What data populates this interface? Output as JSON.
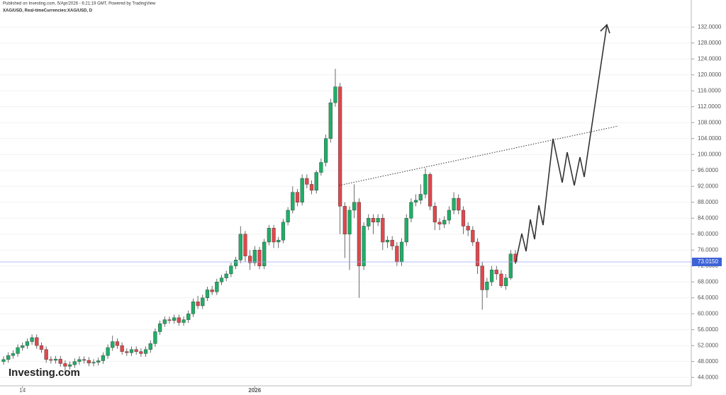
{
  "header": {
    "published": "Published on Investing.com, 5/Apr/2026 - 6:21:19 GMT, Powered by TradingView",
    "symbol": "XAG/USD, Real-timeCurrencies:XAG/USD, D"
  },
  "logo": "Investing.com",
  "chart_data": {
    "type": "candlestick",
    "categories": [
      null,
      null,
      null,
      null,
      "14",
      null,
      null,
      null,
      null,
      null,
      null,
      null,
      null,
      null,
      null,
      null,
      null,
      null,
      null,
      null,
      null,
      null,
      null,
      null,
      null,
      null,
      null,
      null,
      null,
      null,
      null,
      null,
      null,
      null,
      null,
      null,
      null,
      null,
      null,
      null,
      null,
      null,
      null,
      null,
      null,
      null,
      null,
      null,
      null,
      null,
      null,
      null,
      null,
      "2026",
      null,
      null,
      null,
      null,
      null,
      null,
      null,
      null,
      null,
      null,
      null,
      null,
      null,
      null,
      null,
      null,
      null,
      null,
      null,
      null,
      null,
      null,
      null,
      null,
      null,
      null,
      null,
      null,
      null,
      null,
      null,
      null,
      null,
      null,
      null,
      null,
      null,
      null,
      null,
      null,
      null,
      null,
      null,
      null,
      null,
      null,
      null,
      null,
      null,
      null,
      null,
      null,
      null,
      null,
      null
    ],
    "open": [
      48,
      48.5,
      49.5,
      50,
      51.5,
      52,
      53,
      54,
      52,
      51,
      48.5,
      48.3,
      48.6,
      47.5,
      46.8,
      47.2,
      48,
      48.5,
      48.3,
      47.6,
      47.8,
      48.2,
      49.5,
      51.5,
      53,
      52,
      50.5,
      50.2,
      51,
      50.5,
      50,
      51,
      52.5,
      55.5,
      57.5,
      58.5,
      58.3,
      59,
      57.8,
      58.5,
      60,
      63,
      62,
      64,
      66,
      65.5,
      68,
      69,
      70,
      72,
      73.5,
      80,
      74.5,
      72.8,
      76,
      72,
      78,
      81.5,
      78,
      78.5,
      83,
      86,
      90.5,
      88,
      94,
      92.5,
      91,
      95.5,
      98,
      104,
      113,
      117,
      87,
      80,
      86,
      88,
      72,
      82,
      84,
      83,
      84,
      78,
      78.5,
      77,
      73,
      78,
      84,
      88,
      88.5,
      90,
      95,
      87,
      83,
      82.5,
      83.5,
      86,
      89,
      86,
      82,
      81,
      78,
      72,
      66,
      68,
      71,
      70,
      67,
      69,
      75
    ],
    "high": [
      49.3,
      50.3,
      50.8,
      52.3,
      52.8,
      53.8,
      54.8,
      54.8,
      52.8,
      51.8,
      49.3,
      49.4,
      49.4,
      48.3,
      48,
      48.8,
      49.3,
      49.3,
      49.1,
      48.6,
      49,
      50.3,
      52.3,
      54.5,
      53.8,
      52.8,
      51.3,
      51.8,
      51.8,
      51.3,
      51.8,
      53.3,
      56.3,
      58.3,
      59.3,
      59.3,
      59.8,
      59.8,
      59.3,
      60.8,
      63.8,
      64.5,
      64.8,
      66.8,
      67,
      68.8,
      69.8,
      70.8,
      72.8,
      74.3,
      82,
      80.8,
      76,
      77,
      76.8,
      78.8,
      82.3,
      82.3,
      79.3,
      83.8,
      86.8,
      92,
      91.3,
      95,
      95,
      93.5,
      96,
      99,
      105,
      114,
      121.5,
      118,
      88,
      87,
      92.5,
      89,
      83,
      85,
      85,
      85,
      85,
      79.5,
      79.5,
      78,
      79,
      85,
      89,
      90,
      92.5,
      96.5,
      95.5,
      88,
      84,
      84.5,
      87,
      90.5,
      90,
      87,
      83,
      82,
      79,
      73,
      69,
      72,
      72,
      71,
      70,
      76,
      76
    ],
    "low": [
      47.2,
      47.7,
      48.7,
      49.2,
      50.7,
      51.2,
      52.2,
      51.2,
      50.2,
      47.7,
      47.5,
      47.5,
      46.7,
      45,
      46,
      46.4,
      47.2,
      47.5,
      46.8,
      46.8,
      47,
      47.4,
      48.7,
      50.7,
      51.2,
      49.7,
      49.4,
      49.4,
      49.7,
      49.2,
      49.2,
      50.2,
      51.7,
      54.7,
      56.7,
      57.5,
      57.5,
      57,
      57,
      57.7,
      59.2,
      61.2,
      61.2,
      63.2,
      64.7,
      64.7,
      67.2,
      68.2,
      69.2,
      71.2,
      72.7,
      73,
      71,
      72,
      71.2,
      71.2,
      77.2,
      76.5,
      76.5,
      77.7,
      82.2,
      85.2,
      87,
      87.2,
      91.5,
      90,
      90.2,
      94.7,
      97,
      103,
      112,
      80,
      74,
      71,
      84,
      64,
      71,
      81,
      80,
      82,
      76,
      76.5,
      76,
      72,
      72,
      77,
      83,
      87,
      87.5,
      89,
      86,
      81,
      81,
      81.5,
      82.5,
      85,
      85,
      80,
      79.5,
      77,
      70,
      61,
      64,
      67,
      68.5,
      66.5,
      66,
      68.5,
      72.5
    ],
    "close": [
      48.5,
      49.5,
      50,
      51.5,
      52,
      53,
      54,
      52,
      51,
      48.5,
      48.3,
      48.6,
      47.5,
      46.8,
      47.2,
      48,
      48.5,
      48.3,
      47.6,
      47.8,
      48.2,
      49.5,
      51.5,
      53,
      52,
      50.5,
      50.2,
      51,
      50.5,
      50,
      51,
      52.5,
      55.5,
      57.5,
      58.5,
      58.3,
      59,
      57.8,
      58.5,
      60,
      63,
      62,
      64,
      66,
      65.5,
      68,
      69,
      70,
      72,
      73.5,
      80,
      74.5,
      72.8,
      76,
      72,
      78,
      81.5,
      78,
      78.5,
      83,
      86,
      90.5,
      88,
      94,
      92.5,
      91,
      95.5,
      98,
      104,
      113,
      117,
      87,
      80,
      86,
      88,
      72,
      82,
      84,
      83,
      84,
      78,
      78.5,
      77,
      73,
      78,
      84,
      88,
      88.5,
      90,
      95,
      87,
      83,
      82.5,
      83.5,
      86,
      89,
      86,
      82,
      81,
      78,
      72,
      66,
      68,
      71,
      70,
      67,
      69,
      75,
      73
    ],
    "up_color": "#1fae67",
    "down_color": "#e0474c",
    "ylim": [
      41.9,
      138.8
    ],
    "yticks": [
      {
        "value": 44,
        "label": "44.0000"
      },
      {
        "value": 48,
        "label": "48.0000"
      },
      {
        "value": 52,
        "label": "52.0000"
      },
      {
        "value": 56,
        "label": "56.0000"
      },
      {
        "value": 60,
        "label": "60.0000"
      },
      {
        "value": 64,
        "label": "64.0000"
      },
      {
        "value": 68,
        "label": "68.0000"
      },
      {
        "value": 72,
        "label": "72.0000"
      },
      {
        "value": 76,
        "label": "76.0000"
      },
      {
        "value": 80,
        "label": "80.0000"
      },
      {
        "value": 84,
        "label": "84.0000"
      },
      {
        "value": 88,
        "label": "88.0000"
      },
      {
        "value": 92,
        "label": "92.0000"
      },
      {
        "value": 96,
        "label": "96.0000"
      },
      {
        "value": 100,
        "label": "100.0000"
      },
      {
        "value": 104,
        "label": "104.0000"
      },
      {
        "value": 108,
        "label": "108.0000"
      },
      {
        "value": 112,
        "label": "112.0000"
      },
      {
        "value": 116,
        "label": "116.0000"
      },
      {
        "value": 120,
        "label": "120.0000"
      },
      {
        "value": 124,
        "label": "124.0000"
      },
      {
        "value": 128,
        "label": "128.0000"
      },
      {
        "value": 132,
        "label": "132.0000"
      }
    ],
    "grid": true,
    "last_price": {
      "value": 73.015,
      "label": "73.0150"
    }
  }
}
